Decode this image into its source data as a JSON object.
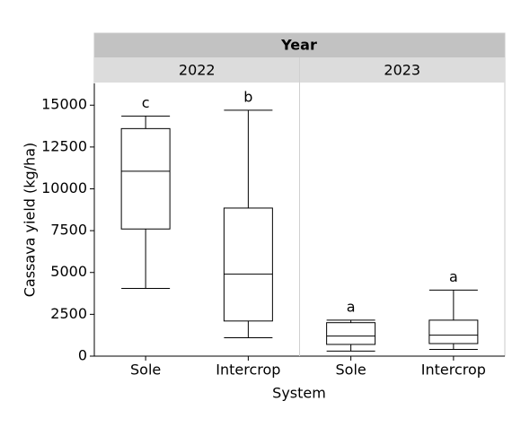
{
  "chart_data": {
    "type": "boxplot",
    "facet_title": "Year",
    "ylabel": "Cassava yield (kg/ha)",
    "xlabel": "System",
    "ylim": [
      0,
      16300
    ],
    "yticks": [
      0,
      2500,
      5000,
      7500,
      10000,
      12500,
      15000
    ],
    "color": "#000000",
    "panels": [
      {
        "name": "2022",
        "categories": [
          "Sole",
          "Intercrop"
        ],
        "boxes": [
          {
            "min": 4050,
            "q1": 7600,
            "median": 11050,
            "q3": 13600,
            "max": 14350,
            "label": "c"
          },
          {
            "min": 1100,
            "q1": 2100,
            "median": 4900,
            "q3": 8850,
            "max": 14700,
            "label": "b"
          }
        ]
      },
      {
        "name": "2023",
        "categories": [
          "Sole",
          "Intercrop"
        ],
        "boxes": [
          {
            "min": 300,
            "q1": 700,
            "median": 1200,
            "q3": 2000,
            "max": 2150,
            "label": "a"
          },
          {
            "min": 400,
            "q1": 750,
            "median": 1250,
            "q3": 2150,
            "max": 3950,
            "label": "a"
          }
        ]
      }
    ]
  }
}
